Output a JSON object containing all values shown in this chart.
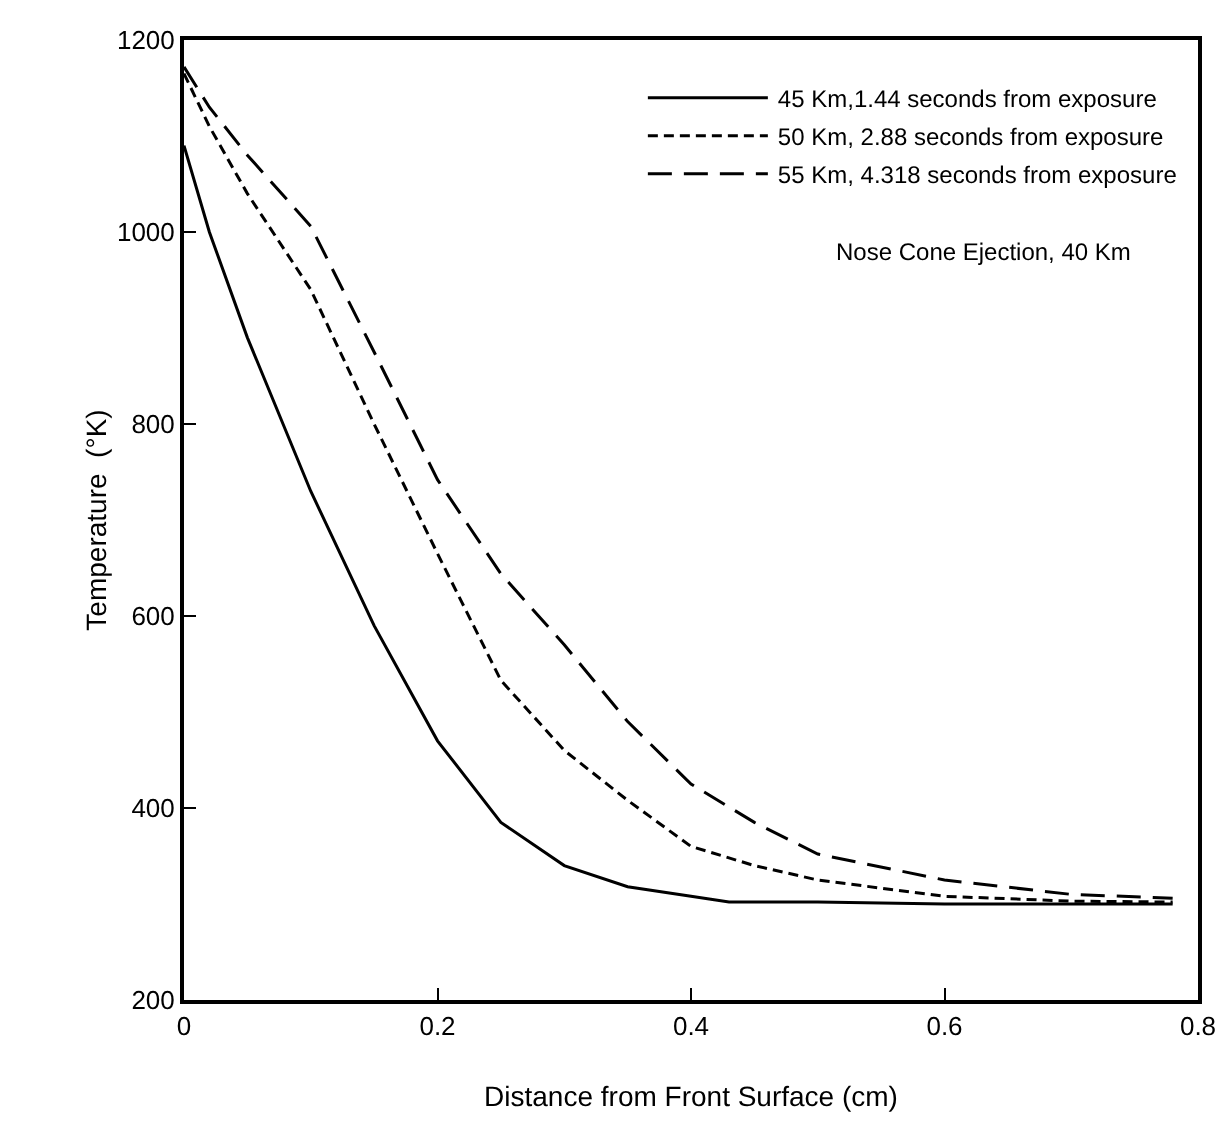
{
  "chart_data": {
    "type": "line",
    "xlabel": "Distance from Front Surface (cm)",
    "ylabel": "Temperature  (°K)",
    "xlim": [
      0,
      0.8
    ],
    "xticks": [
      0,
      0.2,
      0.4,
      0.6,
      0.8
    ],
    "ylim": [
      200,
      1200
    ],
    "yticks": [
      200,
      400,
      600,
      800,
      1000,
      1200
    ],
    "grid": false,
    "legend": "top right",
    "annotations": [
      "Nose Cone Ejection, 40 Km"
    ],
    "series": [
      {
        "name": "45 Km,1.44 seconds from exposure",
        "color": "#000000",
        "line_style": "solid",
        "x": [
          0,
          0.02,
          0.05,
          0.1,
          0.15,
          0.2,
          0.25,
          0.3,
          0.35,
          0.4,
          0.43,
          0.5,
          0.6,
          0.7,
          0.78
        ],
        "values": [
          1090,
          1000,
          890,
          730,
          590,
          470,
          385,
          340,
          318,
          308,
          302,
          302,
          300,
          300,
          300
        ]
      },
      {
        "name": "50 Km, 2.88 seconds from exposure",
        "color": "#000000",
        "line_style": "dotted",
        "x": [
          0,
          0.02,
          0.05,
          0.1,
          0.15,
          0.2,
          0.25,
          0.3,
          0.35,
          0.4,
          0.45,
          0.5,
          0.6,
          0.7,
          0.78
        ],
        "values": [
          1165,
          1110,
          1040,
          940,
          800,
          665,
          533,
          460,
          408,
          360,
          340,
          325,
          308,
          303,
          302
        ]
      },
      {
        "name": "55 Km, 4.318 seconds from exposure",
        "color": "#000000",
        "line_style": "dashed",
        "x": [
          0,
          0.02,
          0.05,
          0.1,
          0.15,
          0.2,
          0.25,
          0.3,
          0.35,
          0.4,
          0.45,
          0.5,
          0.6,
          0.7,
          0.78
        ],
        "values": [
          1172,
          1130,
          1080,
          1006,
          875,
          742,
          644,
          570,
          490,
          425,
          385,
          352,
          325,
          310,
          306
        ]
      }
    ]
  }
}
